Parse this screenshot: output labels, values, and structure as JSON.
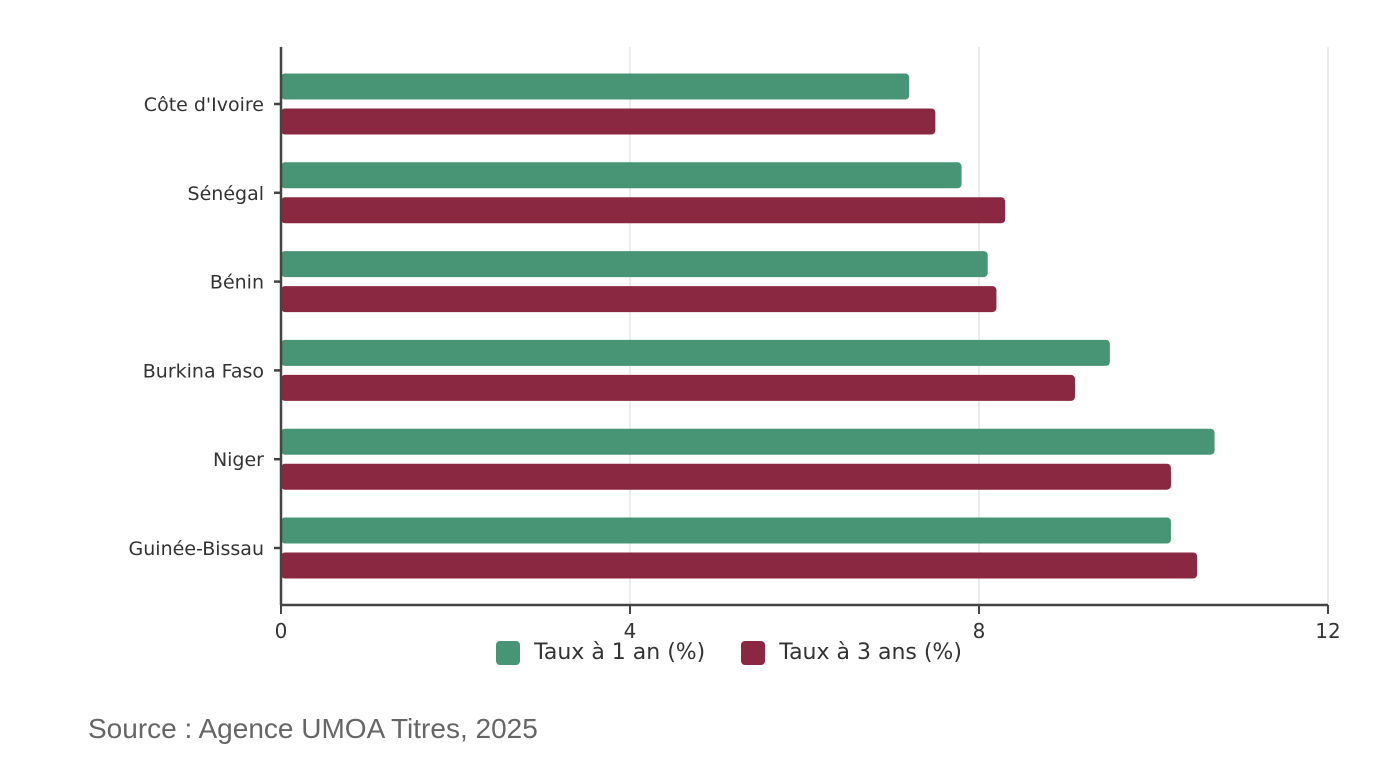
{
  "chart_data": {
    "type": "bar",
    "orientation": "horizontal",
    "categories": [
      "Côte d'Ivoire",
      "Sénégal",
      "Bénin",
      "Burkina Faso",
      "Niger",
      "Guinée-Bissau"
    ],
    "series": [
      {
        "name": "Taux à 1 an (%)",
        "color": "#479574",
        "values": [
          7.2,
          7.8,
          8.1,
          9.5,
          10.7,
          10.2
        ]
      },
      {
        "name": "Taux à 3 ans (%)",
        "color": "#8B2841",
        "values": [
          7.5,
          8.3,
          8.2,
          9.1,
          10.2,
          10.5
        ]
      }
    ],
    "xlim": [
      0,
      12
    ],
    "xticks": [
      0,
      4,
      8,
      12
    ],
    "tick_labels": [
      "0",
      "4",
      "8",
      "12"
    ],
    "grid": true,
    "legend_position": "bottom"
  },
  "source": "Source : Agence UMOA Titres, 2025"
}
